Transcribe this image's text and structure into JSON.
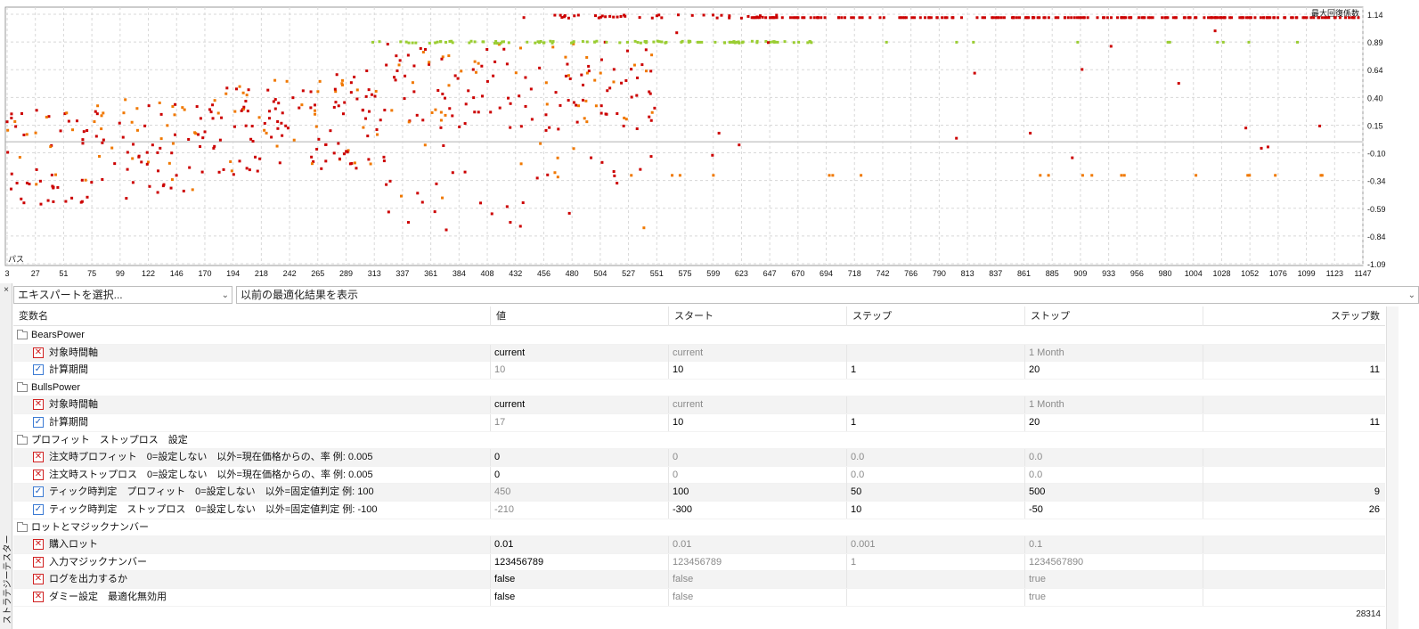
{
  "chart": {
    "legend_label": "最大回復係数",
    "x_axis_label": "パス",
    "y_ticks": [
      "1.14",
      "0.89",
      "0.64",
      "0.40",
      "0.15",
      "-0.10",
      "-0.34",
      "-0.59",
      "-0.84",
      "-1.09"
    ],
    "x_ticks": [
      "3",
      "27",
      "51",
      "75",
      "99",
      "122",
      "146",
      "170",
      "194",
      "218",
      "242",
      "265",
      "289",
      "313",
      "337",
      "361",
      "384",
      "408",
      "432",
      "456",
      "480",
      "504",
      "527",
      "551",
      "575",
      "599",
      "623",
      "647",
      "670",
      "694",
      "718",
      "742",
      "766",
      "790",
      "813",
      "837",
      "861",
      "885",
      "909",
      "933",
      "956",
      "980",
      "1004",
      "1028",
      "1052",
      "1076",
      "1099",
      "1123",
      "1147"
    ],
    "colors": {
      "red": "#cc0000",
      "orange": "#f07800",
      "green": "#9acd32",
      "grid": "#d8d8d8"
    }
  },
  "toolbar": {
    "expert_select": "エキスパートを選択...",
    "previous_results": "以前の最適化結果を表示"
  },
  "side_panel": {
    "close": "×",
    "label": "ストラテジーテスター"
  },
  "table": {
    "headers": {
      "name": "変数名",
      "value": "値",
      "start": "スタート",
      "step": "ステップ",
      "stop": "ストップ",
      "steps": "ステップ数"
    },
    "rows": [
      {
        "kind": "group",
        "label": "BearsPower"
      },
      {
        "kind": "param",
        "checked": false,
        "name": "対象時間軸",
        "value": "current",
        "start": "current",
        "step": "",
        "stop": "1 Month",
        "steps": ""
      },
      {
        "kind": "param",
        "checked": true,
        "name": "計算期間",
        "value": "10",
        "start": "10",
        "step": "1",
        "stop": "20",
        "steps": "11"
      },
      {
        "kind": "group",
        "label": "BullsPower"
      },
      {
        "kind": "param",
        "checked": false,
        "name": "対象時間軸",
        "value": "current",
        "start": "current",
        "step": "",
        "stop": "1 Month",
        "steps": ""
      },
      {
        "kind": "param",
        "checked": true,
        "name": "計算期間",
        "value": "17",
        "start": "10",
        "step": "1",
        "stop": "20",
        "steps": "11"
      },
      {
        "kind": "group",
        "label": "プロフィット　ストップロス　設定"
      },
      {
        "kind": "param",
        "checked": false,
        "name": "注文時プロフィット　0=設定しない　以外=現在価格からの、率 例: 0.005",
        "value": "0",
        "start": "0",
        "step": "0.0",
        "stop": "0.0",
        "steps": ""
      },
      {
        "kind": "param",
        "checked": false,
        "name": "注文時ストップロス　0=設定しない　以外=現在価格からの、率 例: 0.005",
        "value": "0",
        "start": "0",
        "step": "0.0",
        "stop": "0.0",
        "steps": ""
      },
      {
        "kind": "param",
        "checked": true,
        "name": "ティック時判定　プロフィット　0=設定しない　以外=固定値判定 例: 100",
        "value": "450",
        "start": "100",
        "step": "50",
        "stop": "500",
        "steps": "9"
      },
      {
        "kind": "param",
        "checked": true,
        "name": "ティック時判定　ストップロス　0=設定しない　以外=固定値判定 例: -100",
        "value": "-210",
        "start": "-300",
        "step": "10",
        "stop": "-50",
        "steps": "26"
      },
      {
        "kind": "group",
        "label": "ロットとマジックナンバー"
      },
      {
        "kind": "param",
        "checked": false,
        "name": "購入ロット",
        "value": "0.01",
        "start": "0.01",
        "step": "0.001",
        "stop": "0.1",
        "steps": ""
      },
      {
        "kind": "param",
        "checked": false,
        "name": "入力マジックナンバー",
        "value": "123456789",
        "start": "123456789",
        "step": "1",
        "stop": "1234567890",
        "steps": ""
      },
      {
        "kind": "param",
        "checked": false,
        "name": "ログを出力するか",
        "value": "false",
        "start": "false",
        "step": "",
        "stop": "true",
        "steps": ""
      },
      {
        "kind": "param",
        "checked": false,
        "name": "ダミー設定　最適化無効用",
        "value": "false",
        "start": "false",
        "step": "",
        "stop": "true",
        "steps": ""
      }
    ],
    "total_count": "28314"
  }
}
